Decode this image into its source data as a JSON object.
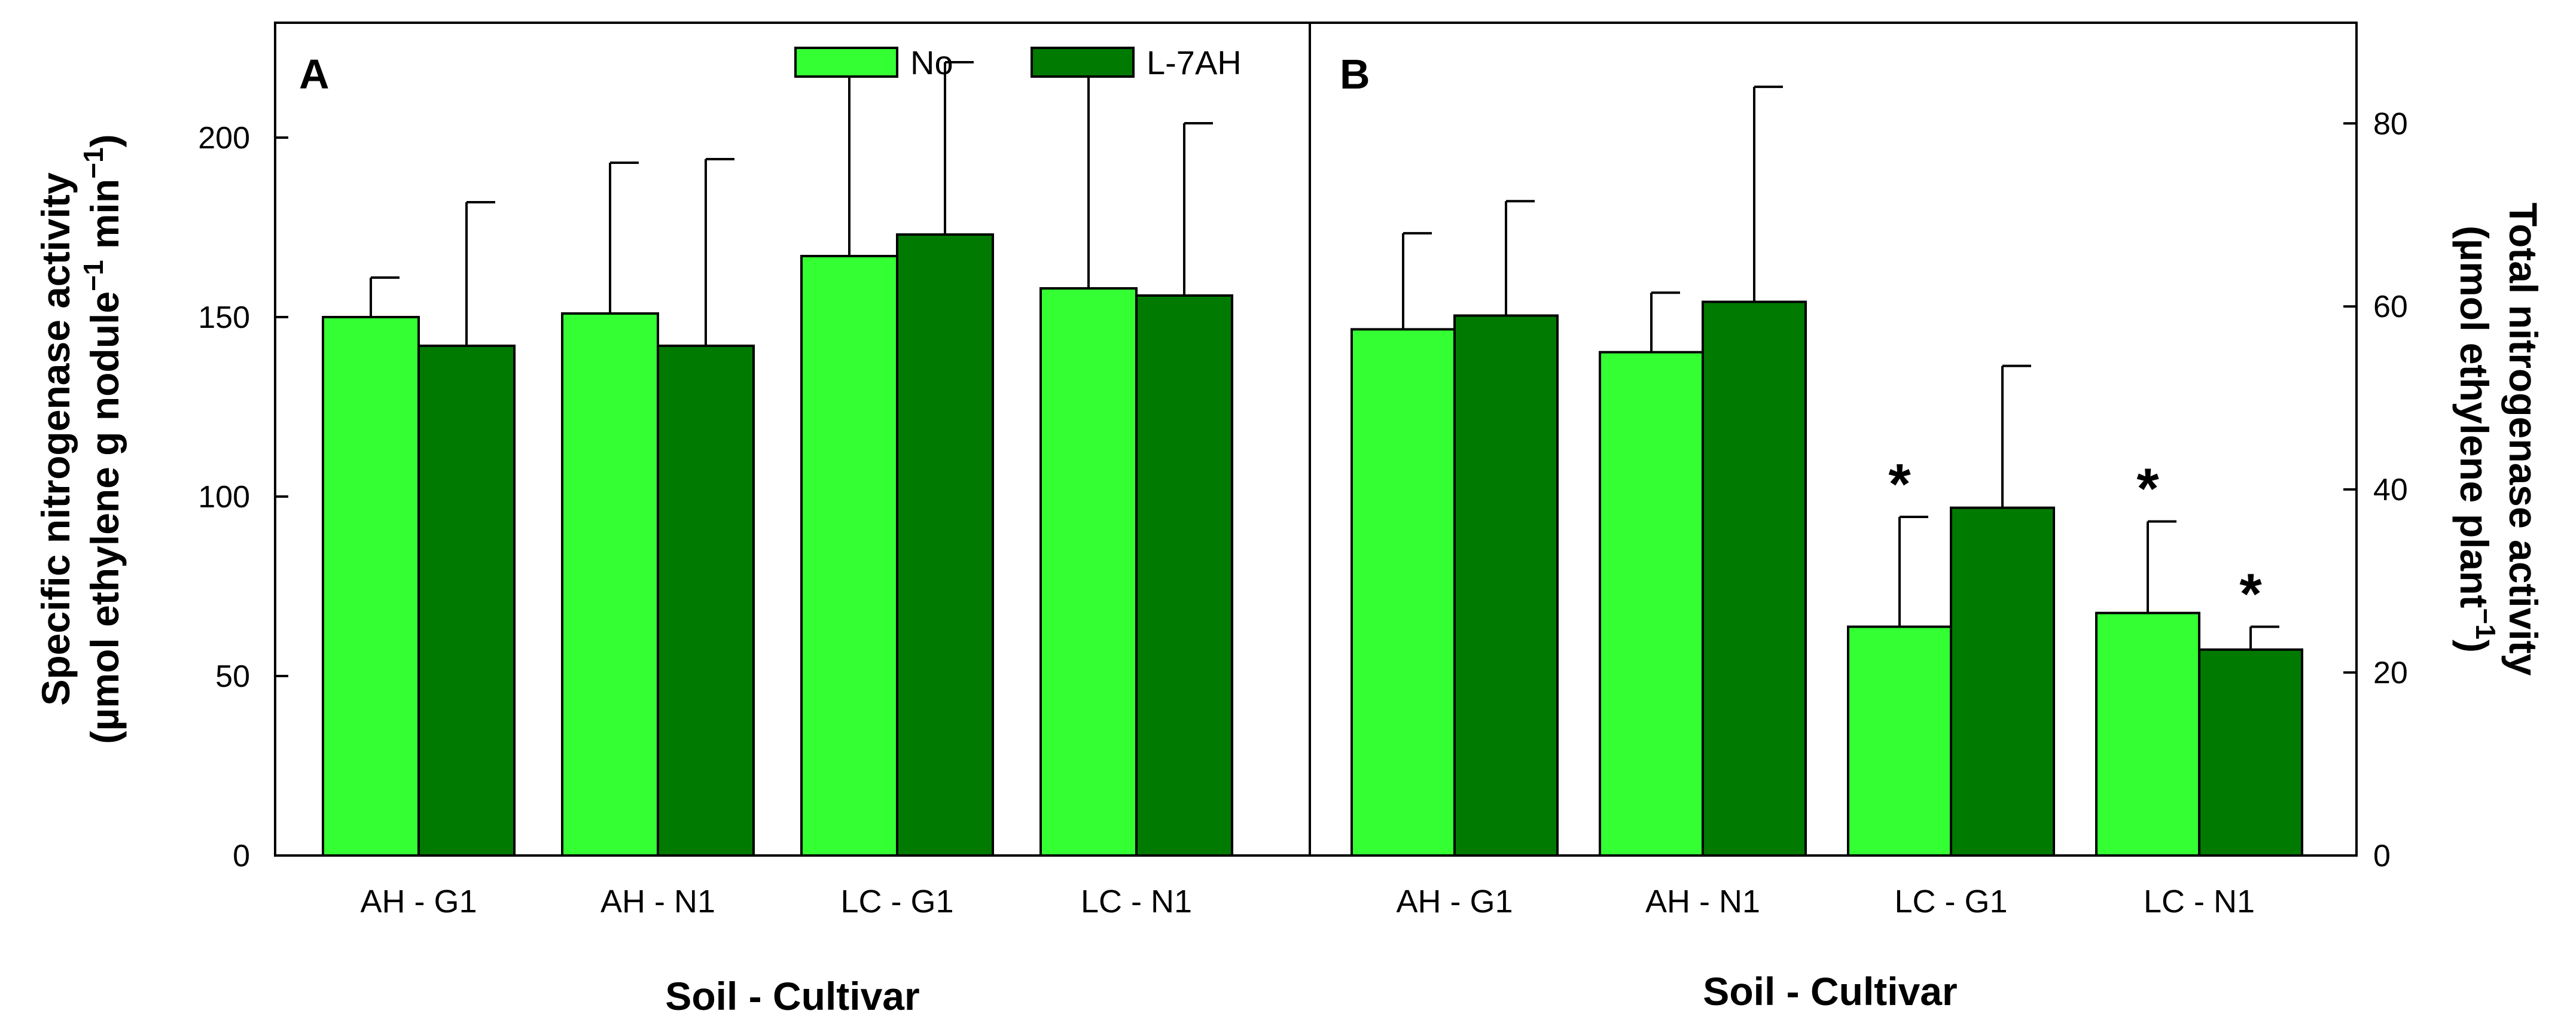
{
  "chart_data": {
    "type": "bar",
    "legend": {
      "placement": "top-center",
      "entries": [
        {
          "name": "No",
          "color": "#33ff33"
        },
        {
          "name": "L-7AH",
          "color": "#007a00"
        }
      ]
    },
    "panels": [
      {
        "id": "A",
        "letter": "A",
        "categories": [
          "AH - G1",
          "AH - N1",
          "LC - G1",
          "LC - N1"
        ],
        "xlabel": "Soil - Cultivar",
        "ylabel_line1": "Specific nitrogenase activity",
        "ylabel_line2_prefix": "(µmol ethylene g nodule",
        "ylabel_line2_mid": " min",
        "ylabel_line2_suffix": ")",
        "ylabel_sup": "−1",
        "y_axis_side": "left",
        "ylim": [
          0,
          232
        ],
        "yticks": [
          0,
          50,
          100,
          150,
          200
        ],
        "series": [
          {
            "name": "No",
            "values": [
              150,
              151,
              167,
              158
            ],
            "errors": [
              11,
              42,
              53,
              61
            ],
            "significant": [
              false,
              false,
              false,
              false
            ]
          },
          {
            "name": "L-7AH",
            "values": [
              142,
              142,
              173,
              156
            ],
            "errors": [
              40,
              52,
              48,
              48
            ],
            "significant": [
              false,
              false,
              false,
              false
            ]
          }
        ]
      },
      {
        "id": "B",
        "letter": "B",
        "categories": [
          "AH - G1",
          "AH - N1",
          "LC - G1",
          "LC - N1"
        ],
        "xlabel": "Soil - Cultivar",
        "ylabel_line1": "Total nitrogenase activity",
        "ylabel_line2_prefix": "(µmol ethylene plant",
        "ylabel_line2_suffix": ")",
        "ylabel_sup": "−1",
        "y_axis_side": "right",
        "ylim": [
          0,
          91
        ],
        "yticks": [
          0,
          20,
          40,
          60,
          80
        ],
        "series": [
          {
            "name": "No",
            "values": [
              57.5,
              55,
              25,
              26.5
            ],
            "errors": [
              10.5,
              6.5,
              12,
              10
            ],
            "significant": [
              false,
              false,
              true,
              true
            ]
          },
          {
            "name": "L-7AH",
            "values": [
              59,
              60.5,
              38,
              22.5
            ],
            "errors": [
              12.5,
              23.5,
              15.5,
              2.5
            ],
            "significant": [
              false,
              false,
              false,
              true
            ]
          }
        ]
      }
    ],
    "significance_marker": "*"
  }
}
